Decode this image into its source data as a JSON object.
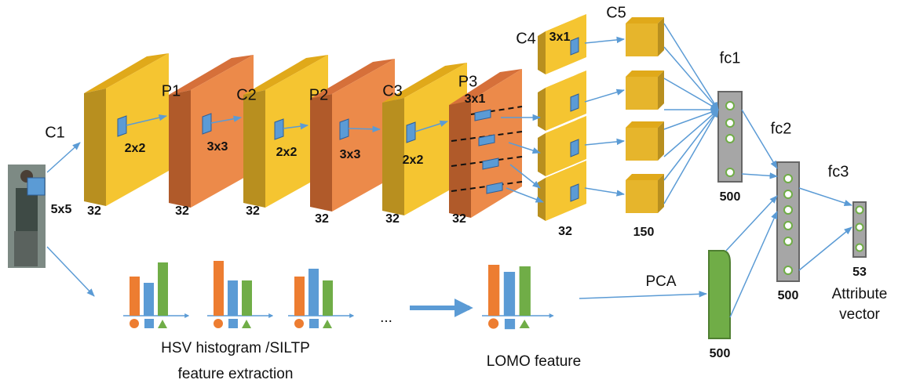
{
  "input": {
    "kernel": "5x5"
  },
  "layers": [
    {
      "name": "C1",
      "kernel": "2x2",
      "channels": 32
    },
    {
      "name": "P1",
      "kernel": "3x3",
      "channels": 32
    },
    {
      "name": "C2",
      "kernel": "2x2",
      "channels": 32
    },
    {
      "name": "P2",
      "kernel": "3x3",
      "channels": 32
    },
    {
      "name": "C3",
      "kernel": "2x2",
      "channels": 32
    },
    {
      "name": "P3",
      "kernel": "3x1",
      "channels": 32
    },
    {
      "name": "C4",
      "kernel": "3x1",
      "channels": 32
    },
    {
      "name": "C5",
      "channels": 150
    }
  ],
  "fc": [
    {
      "name": "fc1",
      "units": 500
    },
    {
      "name": "fc2",
      "units": 500
    },
    {
      "name": "fc3",
      "units": 53
    }
  ],
  "output_label": [
    "Attribute",
    "vector"
  ],
  "lomo": {
    "stage_label": [
      "HSV histogram /SILTP",
      "feature extraction"
    ],
    "ellipsis": "...",
    "feature_label": "LOMO feature",
    "reduction": "PCA",
    "dims": 500
  }
}
